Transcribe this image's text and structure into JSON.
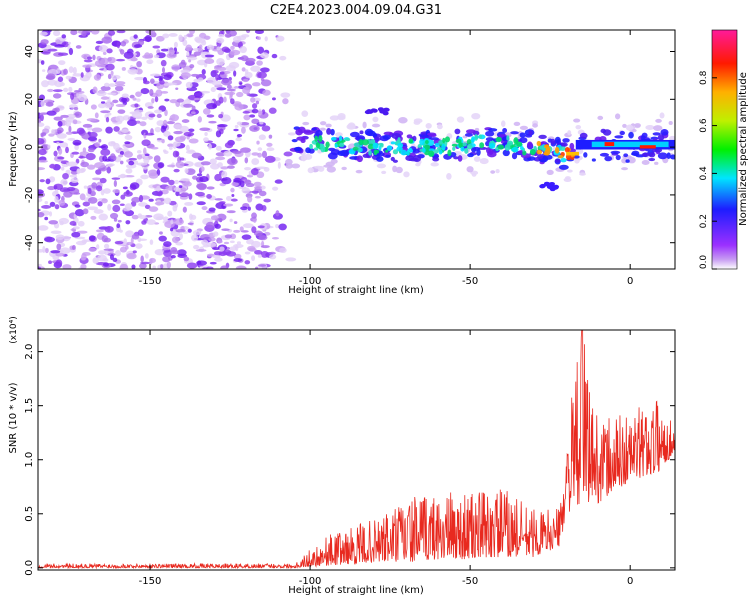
{
  "title": "C2E4.2023.004.09.04.G31",
  "colors": {
    "snr_line": "#e8291f",
    "axis": "#000000"
  },
  "chart_data": [
    {
      "type": "heatmap",
      "xlabel": "Height of straight line (km)",
      "ylabel": "Frequency (Hz)",
      "xlim": [
        -185,
        14
      ],
      "ylim": [
        -51,
        49
      ],
      "xticks": [
        -150,
        -100,
        -50,
        0
      ],
      "xtick_labels": [
        "-150",
        "-100",
        "-50",
        "0"
      ],
      "yticks": [
        -40,
        -20,
        0,
        20,
        40
      ],
      "ytick_labels": [
        "-40",
        "-20",
        "0",
        "20",
        "40"
      ],
      "colorbar": {
        "label": "Normalized spectral amplitude",
        "range": [
          0,
          1
        ],
        "ticks": [
          0.0,
          0.2,
          0.4,
          0.6,
          0.8
        ],
        "tick_labels": [
          "0.0",
          "0.2",
          "0.4",
          "0.6",
          "0.8"
        ],
        "colormap": "rainbow (white-violet-blue-cyan-green-yellow-red-magenta)"
      },
      "noise_region": {
        "x_range": [
          -185,
          -105
        ],
        "y_range": [
          -51,
          49
        ]
      },
      "signal_track": [
        {
          "x": -105,
          "y": 3
        },
        {
          "x": -90,
          "y": 1
        },
        {
          "x": -75,
          "y": 0
        },
        {
          "x": -60,
          "y": 0
        },
        {
          "x": -45,
          "y": 2
        },
        {
          "x": -30,
          "y": 0
        },
        {
          "x": -20,
          "y": -3
        },
        {
          "x": -10,
          "y": 1
        },
        {
          "x": 0,
          "y": 0
        },
        {
          "x": 14,
          "y": 1
        }
      ],
      "grid": false
    },
    {
      "type": "line",
      "xlabel": "Height of straight line (km)",
      "ylabel": "SNR (10 * v/v)",
      "y_multiplier": "(x10⁴)",
      "xlim": [
        -185,
        14
      ],
      "ylim": [
        -0.02,
        2.2
      ],
      "xticks": [
        -150,
        -100,
        -50,
        0
      ],
      "xtick_labels": [
        "-150",
        "-100",
        "-50",
        "0"
      ],
      "yticks": [
        0.0,
        0.5,
        1.0,
        1.5,
        2.0
      ],
      "ytick_labels": [
        "0.0",
        "0.5",
        "1.0",
        "1.5",
        "2.0"
      ],
      "series": [
        {
          "color": "#e8291f",
          "envelope": [
            {
              "x": -185,
              "low": 0.0,
              "high": 0.04
            },
            {
              "x": -105,
              "low": 0.0,
              "high": 0.04
            },
            {
              "x": -95,
              "low": 0.02,
              "high": 0.3
            },
            {
              "x": -80,
              "low": 0.05,
              "high": 0.45
            },
            {
              "x": -70,
              "low": 0.05,
              "high": 0.65
            },
            {
              "x": -60,
              "low": 0.08,
              "high": 0.7
            },
            {
              "x": -50,
              "low": 0.08,
              "high": 0.7
            },
            {
              "x": -40,
              "low": 0.1,
              "high": 0.75
            },
            {
              "x": -30,
              "low": 0.1,
              "high": 0.55
            },
            {
              "x": -22,
              "low": 0.2,
              "high": 0.55
            },
            {
              "x": -20,
              "low": 0.5,
              "high": 1.25
            },
            {
              "x": -15,
              "low": 0.6,
              "high": 2.2
            },
            {
              "x": -10,
              "low": 0.6,
              "high": 1.4
            },
            {
              "x": 0,
              "low": 0.8,
              "high": 1.45
            },
            {
              "x": 10,
              "low": 0.9,
              "high": 1.6
            },
            {
              "x": 14,
              "low": 1.1,
              "high": 1.25
            }
          ]
        }
      ],
      "grid": false
    }
  ]
}
